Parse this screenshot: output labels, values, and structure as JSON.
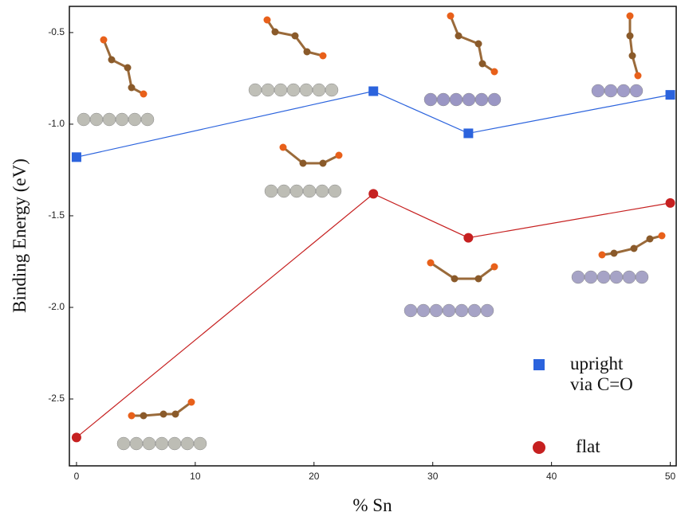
{
  "chart_data": {
    "type": "line",
    "x_label": "% Sn",
    "y_label": "Binding Energy (eV)",
    "x": [
      0,
      25,
      33,
      50
    ],
    "series": [
      {
        "name": "upright via C=O",
        "color": "#2b63dd",
        "marker": "square",
        "values": [
          -1.18,
          -0.82,
          -1.05,
          -0.84
        ]
      },
      {
        "name": "flat",
        "color": "#c62020",
        "marker": "circle",
        "values": [
          -2.71,
          -1.38,
          -1.62,
          -1.43
        ]
      }
    ],
    "xlim": [
      -0.6,
      50.5
    ],
    "ylim": [
      -2.865,
      -0.357
    ],
    "xticks": [
      0,
      10,
      20,
      30,
      40,
      50
    ],
    "yticks": [
      -0.5,
      {
        "value": -1.0,
        "label": "-1.0"
      },
      -1.5,
      {
        "value": -2.0,
        "label": "-2.0"
      },
      -2.5
    ],
    "legend": "lower-right"
  }
}
